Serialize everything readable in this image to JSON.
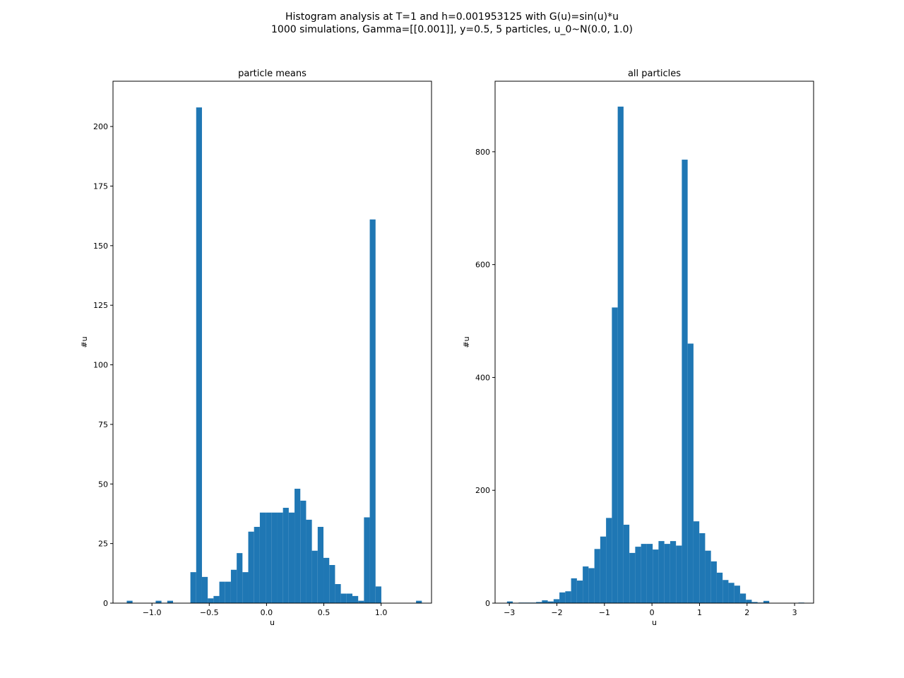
{
  "figure": {
    "title_line1": "Histogram analysis at T=1 and h=0.001953125 with G(u)=sin(u)*u",
    "title_line2": "1000 simulations, Gamma=[[0.001]], y=0.5, 5 particles, u_0~N(0.0, 1.0)"
  },
  "chart_data": [
    {
      "type": "bar",
      "title": "particle means",
      "xlabel": "u",
      "ylabel": "#u",
      "xlim": [
        -1.34,
        1.44
      ],
      "ylim": [
        0,
        219
      ],
      "xticks": [
        -1.0,
        -0.5,
        0.0,
        0.5,
        1.0
      ],
      "xtick_labels": [
        "−1.0",
        "−0.5",
        "0.0",
        "0.5",
        "1.0"
      ],
      "yticks": [
        0,
        25,
        50,
        75,
        100,
        125,
        150,
        175,
        200
      ],
      "ytick_labels": [
        "0",
        "25",
        "50",
        "75",
        "100",
        "125",
        "150",
        "175",
        "200"
      ],
      "bin_start": -1.22,
      "bin_width": 0.0505,
      "values": [
        1,
        0,
        0,
        0,
        0,
        1,
        0,
        1,
        0,
        0,
        0,
        13,
        208,
        11,
        2,
        3,
        9,
        9,
        14,
        21,
        13,
        30,
        32,
        38,
        38,
        38,
        38,
        40,
        38,
        48,
        43,
        35,
        22,
        32,
        19,
        16,
        8,
        4,
        4,
        3,
        1,
        36,
        161,
        7,
        0,
        0,
        0,
        0,
        0,
        0,
        1
      ],
      "color": "#1f77b4"
    },
    {
      "type": "bar",
      "title": "all particles",
      "xlabel": "u",
      "ylabel": "#u",
      "xlim": [
        -3.3,
        3.4
      ],
      "ylim": [
        0,
        925
      ],
      "xticks": [
        -3,
        -2,
        -1,
        0,
        1,
        2,
        3
      ],
      "xtick_labels": [
        "−3",
        "−2",
        "−1",
        "0",
        "1",
        "2",
        "3"
      ],
      "yticks": [
        0,
        200,
        400,
        600,
        800
      ],
      "ytick_labels": [
        "0",
        "200",
        "400",
        "600",
        "800"
      ],
      "bin_start": -3.05,
      "bin_width": 0.1226,
      "values": [
        3,
        0,
        1,
        1,
        1,
        2,
        5,
        3,
        7,
        19,
        21,
        44,
        40,
        65,
        62,
        96,
        118,
        151,
        524,
        880,
        139,
        89,
        100,
        105,
        105,
        95,
        110,
        105,
        110,
        102,
        786,
        460,
        145,
        124,
        93,
        74,
        54,
        41,
        36,
        31,
        17,
        6,
        2,
        1,
        4,
        0,
        0,
        0,
        0,
        0,
        1
      ],
      "color": "#1f77b4"
    }
  ]
}
